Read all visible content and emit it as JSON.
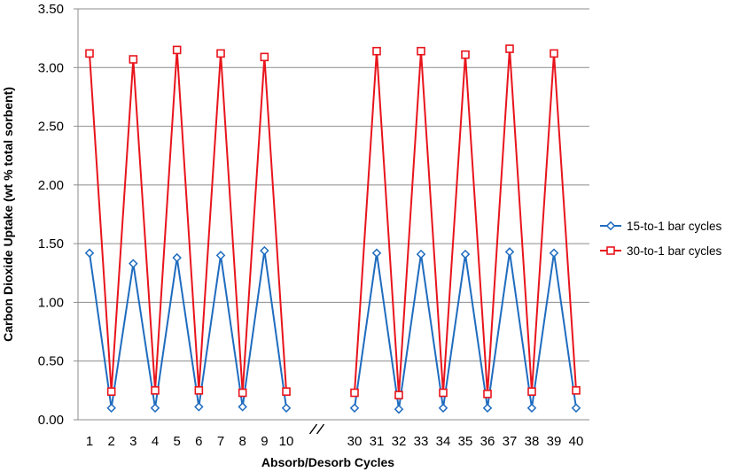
{
  "chart_data": {
    "type": "line",
    "title": "",
    "xlabel": "Absorb/Desorb Cycles",
    "ylabel": "Carbon Dioxide Uptake (wt % total sorbent)",
    "ylim": [
      0,
      3.5
    ],
    "y_ticks": [
      "0.00",
      "0.50",
      "1.00",
      "1.50",
      "2.00",
      "2.50",
      "3.00",
      "3.50"
    ],
    "grid": "horizontal",
    "legend_position": "right",
    "axis_break_symbol": "//",
    "categories": [
      "1",
      "2",
      "3",
      "4",
      "5",
      "6",
      "7",
      "8",
      "9",
      "10",
      "30",
      "31",
      "32",
      "33",
      "34",
      "35",
      "36",
      "37",
      "38",
      "39",
      "40"
    ],
    "series": [
      {
        "name": "15-to-1 bar cycles",
        "color": "#1f6cbf",
        "marker": "diamond",
        "segments": [
          {
            "x": [
              "1",
              "2",
              "3",
              "4",
              "5",
              "6",
              "7",
              "8",
              "9",
              "10"
            ],
            "values": [
              1.42,
              0.1,
              1.33,
              0.1,
              1.38,
              0.11,
              1.4,
              0.11,
              1.44,
              0.1
            ]
          },
          {
            "x": [
              "30",
              "31",
              "32",
              "33",
              "34",
              "35",
              "36",
              "37",
              "38",
              "39",
              "40"
            ],
            "values": [
              0.1,
              1.42,
              0.09,
              1.41,
              0.1,
              1.41,
              0.1,
              1.43,
              0.1,
              1.42,
              0.1
            ]
          }
        ]
      },
      {
        "name": "30-to-1 bar cycles",
        "color": "#e8141c",
        "marker": "square",
        "segments": [
          {
            "x": [
              "1",
              "2",
              "3",
              "4",
              "5",
              "6",
              "7",
              "8",
              "9",
              "10"
            ],
            "values": [
              3.12,
              0.24,
              3.07,
              0.25,
              3.15,
              0.25,
              3.12,
              0.23,
              3.09,
              0.24
            ]
          },
          {
            "x": [
              "30",
              "31",
              "32",
              "33",
              "34",
              "35",
              "36",
              "37",
              "38",
              "39",
              "40"
            ],
            "values": [
              0.23,
              3.14,
              0.21,
              3.14,
              0.23,
              3.11,
              0.22,
              3.16,
              0.24,
              3.12,
              0.25
            ]
          }
        ]
      }
    ]
  }
}
